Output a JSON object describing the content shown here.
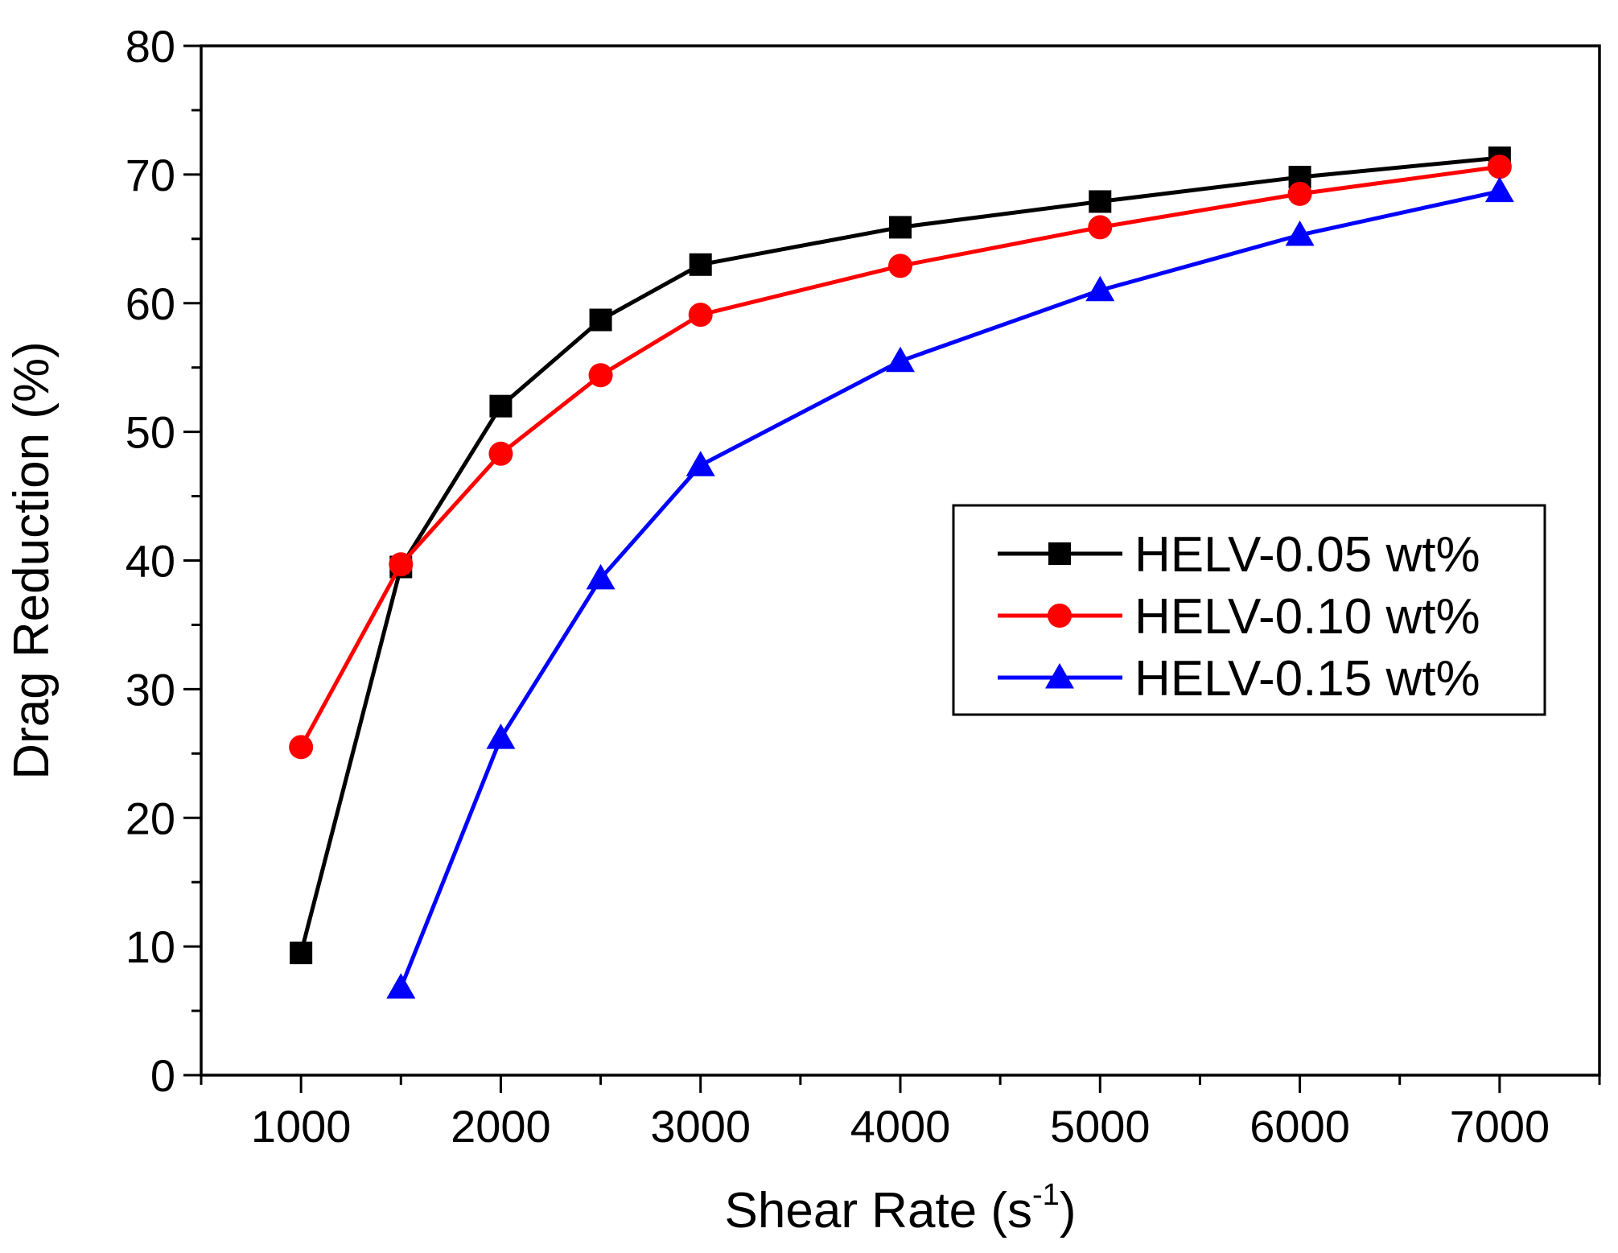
{
  "chart_data": {
    "type": "line",
    "title": "",
    "xlabel": "Shear Rate (s",
    "xlabel_sup": "-1",
    "xlabel_end": ")",
    "ylabel": "Drag Reduction (%)",
    "xlim": [
      500,
      7500
    ],
    "ylim": [
      0,
      80
    ],
    "xticks": [
      1000,
      2000,
      3000,
      4000,
      5000,
      6000,
      7000
    ],
    "yticks": [
      0,
      10,
      20,
      30,
      40,
      50,
      60,
      70,
      80
    ],
    "legend_position": "right-center",
    "series": [
      {
        "name": "HELV-0.05 wt%",
        "color": "#000000",
        "marker": "square",
        "x": [
          1000,
          1500,
          2000,
          2500,
          3000,
          4000,
          5000,
          6000,
          7000
        ],
        "y": [
          9.5,
          39.5,
          52.0,
          58.7,
          63.0,
          65.9,
          67.9,
          69.8,
          71.3
        ]
      },
      {
        "name": "HELV-0.10 wt%",
        "color": "#ff0000",
        "marker": "circle",
        "x": [
          1000,
          1500,
          2000,
          2500,
          3000,
          4000,
          5000,
          6000,
          7000
        ],
        "y": [
          25.5,
          39.7,
          48.3,
          54.4,
          59.1,
          62.9,
          65.9,
          68.5,
          70.6
        ]
      },
      {
        "name": "HELV-0.15 wt%",
        "color": "#0000ff",
        "marker": "triangle",
        "x": [
          1500,
          2000,
          2500,
          3000,
          4000,
          5000,
          6000,
          7000
        ],
        "y": [
          6.8,
          26.2,
          38.6,
          47.4,
          55.5,
          61.0,
          65.3,
          68.7
        ]
      }
    ]
  }
}
